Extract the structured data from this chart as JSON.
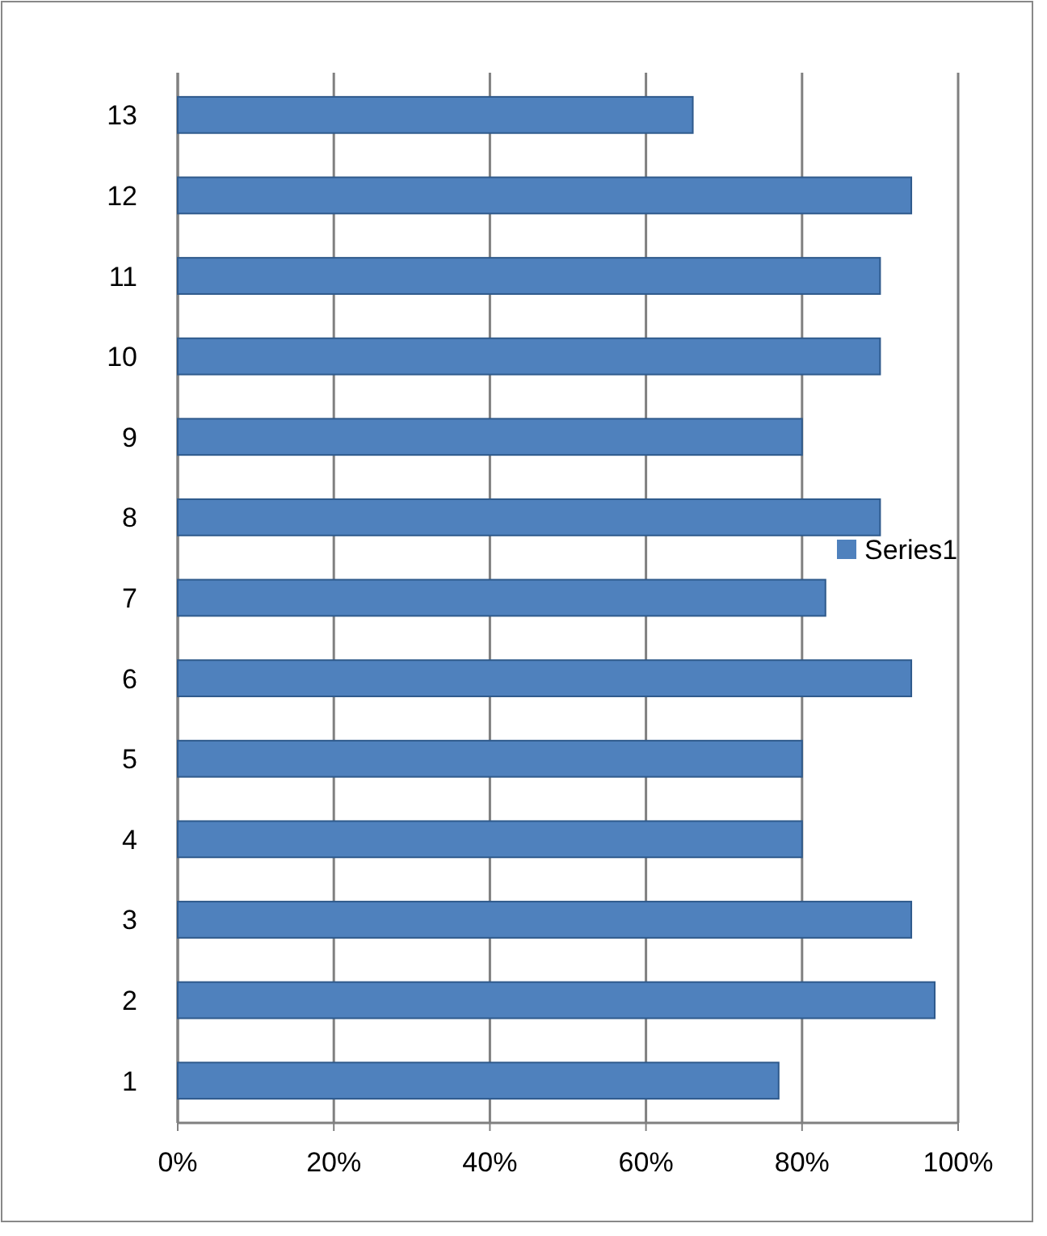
{
  "chart_data": {
    "type": "bar",
    "orientation": "horizontal",
    "categories": [
      "13",
      "12",
      "11",
      "10",
      "9",
      "8",
      "7",
      "6",
      "5",
      "4",
      "3",
      "2",
      "1"
    ],
    "series": [
      {
        "name": "Series1",
        "color": "#4f81bd",
        "values": [
          0.66,
          0.94,
          0.9,
          0.9,
          0.8,
          0.9,
          0.83,
          0.94,
          0.8,
          0.8,
          0.94,
          0.97,
          0.77
        ]
      }
    ],
    "xlim": [
      0,
      1
    ],
    "xticks": [
      {
        "value": 0,
        "label": "0%"
      },
      {
        "value": 0.2,
        "label": "20%"
      },
      {
        "value": 0.4,
        "label": "40%"
      },
      {
        "value": 0.6,
        "label": "60%"
      },
      {
        "value": 0.8,
        "label": "80%"
      },
      {
        "value": 1,
        "label": "100%"
      }
    ],
    "grid": "x",
    "legend": "right"
  }
}
